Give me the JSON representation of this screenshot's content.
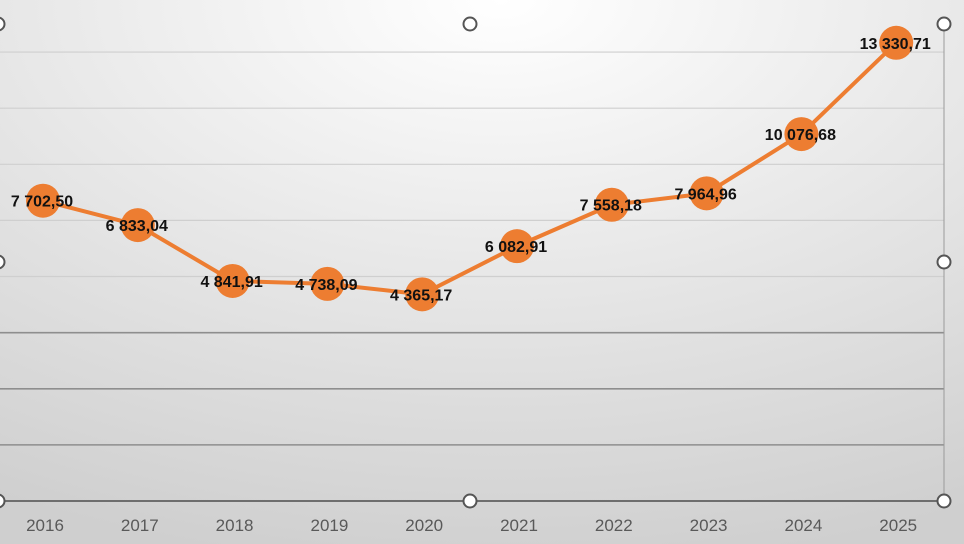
{
  "chart_data": {
    "type": "line",
    "title": "",
    "xlabel": "",
    "ylabel": "",
    "categories": [
      "2016",
      "2017",
      "2018",
      "2019",
      "2020",
      "2021",
      "2022",
      "2023",
      "2024",
      "2025"
    ],
    "series": [
      {
        "values": [
          7702.5,
          6833.04,
          4841.91,
          4738.09,
          4365.17,
          6082.91,
          7558.18,
          7964.96,
          10076.68,
          13330.71
        ],
        "labels": [
          "7 702,50",
          "6 833,04",
          "4 841,91",
          "4 738,09",
          "4 365,17",
          "6 082,91",
          "7 558,18",
          "7 964,96",
          "10 076,68",
          "13 330,71"
        ],
        "color": "#ED7D31"
      }
    ],
    "ylim": [
      -3000,
      14000
    ],
    "y_gridline_step": 2000,
    "grid": true,
    "legend": "none",
    "background": "light gray radial gradient",
    "selected": true
  }
}
